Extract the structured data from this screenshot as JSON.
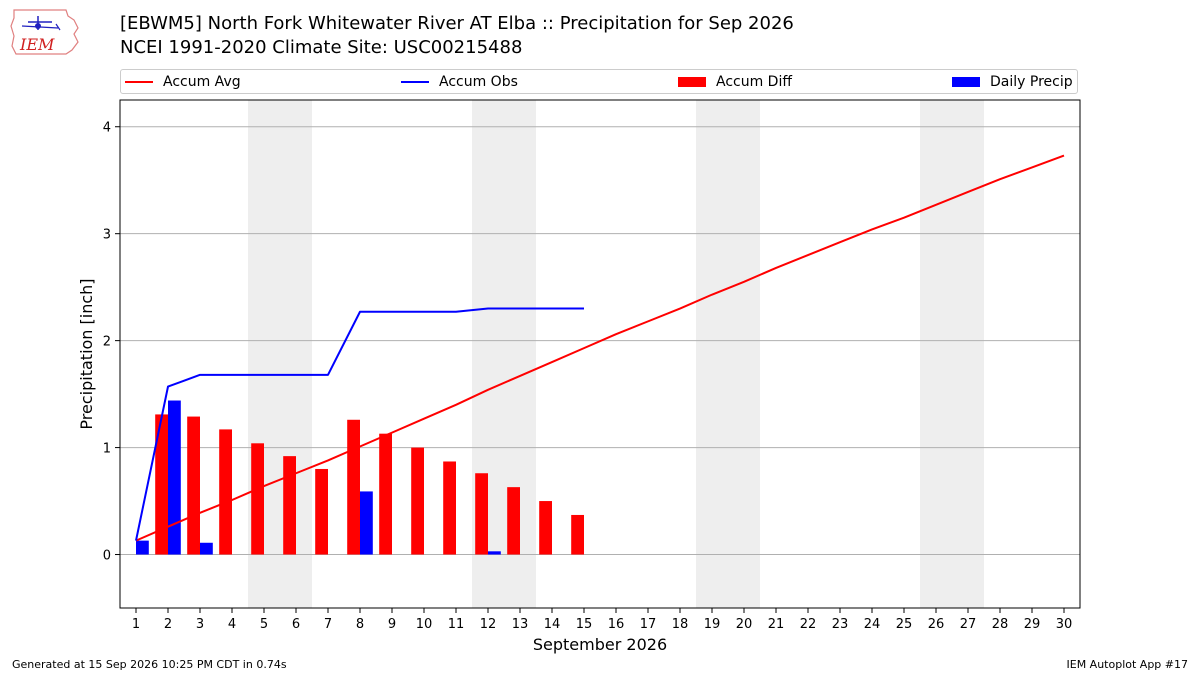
{
  "header": {
    "title_line1": "[EBWM5] North Fork Whitewater River  AT Elba :: Precipitation for Sep 2026",
    "title_line2": "NCEI 1991-2020 Climate Site: USC00215488",
    "logo_text": "IEM"
  },
  "footer": {
    "left": "Generated at 15 Sep 2026 10:25 PM CDT in 0.74s",
    "right": "IEM Autoplot App #17"
  },
  "colors": {
    "avg": "#ff0000",
    "obs": "#0000ff",
    "diff": "#ff0000",
    "daily": "#0000ff",
    "weekend_band": "#eeeeee",
    "grid": "#b0b0b0"
  },
  "chart_data": {
    "type": "bar",
    "xlabel": "September 2026",
    "ylabel": "Precipitation [inch]",
    "x": [
      1,
      2,
      3,
      4,
      5,
      6,
      7,
      8,
      9,
      10,
      11,
      12,
      13,
      14,
      15,
      16,
      17,
      18,
      19,
      20,
      21,
      22,
      23,
      24,
      25,
      26,
      27,
      28,
      29,
      30
    ],
    "xlim": [
      0.5,
      30.5
    ],
    "ylim": [
      -0.5,
      4.25
    ],
    "yticks": [
      0,
      1,
      2,
      3,
      4
    ],
    "grid": "horizontal",
    "legend_placement": "top",
    "weekend_bands": [
      [
        4.5,
        6.5
      ],
      [
        11.5,
        13.5
      ],
      [
        18.5,
        20.5
      ],
      [
        25.5,
        27.5
      ]
    ],
    "series": [
      {
        "name": "Accum Avg",
        "kind": "line",
        "color": "#ff0000",
        "x": [
          1,
          2,
          3,
          4,
          5,
          6,
          7,
          8,
          9,
          10,
          11,
          12,
          13,
          14,
          15,
          16,
          17,
          18,
          19,
          20,
          21,
          22,
          23,
          24,
          25,
          26,
          27,
          28,
          29,
          30
        ],
        "values": [
          0.13,
          0.26,
          0.39,
          0.51,
          0.64,
          0.76,
          0.88,
          1.01,
          1.14,
          1.27,
          1.4,
          1.54,
          1.67,
          1.8,
          1.93,
          2.06,
          2.18,
          2.3,
          2.43,
          2.55,
          2.68,
          2.8,
          2.92,
          3.04,
          3.15,
          3.27,
          3.39,
          3.51,
          3.62,
          3.73
        ]
      },
      {
        "name": "Accum Obs",
        "kind": "line",
        "color": "#0000ff",
        "x": [
          1,
          2,
          3,
          4,
          5,
          6,
          7,
          8,
          9,
          10,
          11,
          12,
          13,
          14,
          15
        ],
        "values": [
          0.13,
          1.57,
          1.68,
          1.68,
          1.68,
          1.68,
          1.68,
          2.27,
          2.27,
          2.27,
          2.27,
          2.3,
          2.3,
          2.3,
          2.3
        ]
      },
      {
        "name": "Accum Diff",
        "kind": "bar",
        "color": "#ff0000",
        "x": [
          2,
          3,
          4,
          5,
          6,
          7,
          8,
          9,
          10,
          11,
          12,
          13,
          14,
          15
        ],
        "values": [
          1.31,
          1.29,
          1.17,
          1.04,
          0.92,
          0.8,
          1.26,
          1.13,
          1.0,
          0.87,
          0.76,
          0.63,
          0.5,
          0.37
        ]
      },
      {
        "name": "Daily Precip",
        "kind": "bar",
        "color": "#0000ff",
        "x": [
          1,
          2,
          3,
          8,
          12
        ],
        "values": [
          0.13,
          1.44,
          0.11,
          0.59,
          0.03
        ]
      }
    ]
  }
}
